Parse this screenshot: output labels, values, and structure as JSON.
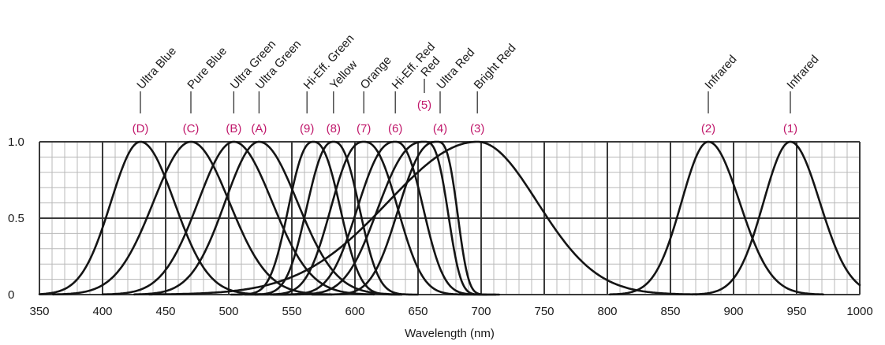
{
  "chart_data": {
    "type": "line",
    "xlabel": "Wavelength (nm)",
    "ylabel": "",
    "xlim": [
      350,
      1000
    ],
    "ylim": [
      0,
      1.0
    ],
    "x_ticks": [
      "350",
      "400",
      "450",
      "500",
      "550",
      "600",
      "650",
      "700",
      "750",
      "800",
      "850",
      "900",
      "950",
      "1000"
    ],
    "y_ticks": [
      "0",
      "0.5",
      "1.0"
    ],
    "grid": true,
    "accent_color": "#c0186b",
    "series": [
      {
        "code": "(D)",
        "name": "Ultra Blue",
        "peak": 430,
        "left_width": 33,
        "right_width": 38,
        "left_power": 2,
        "right_power": 2
      },
      {
        "code": "(C)",
        "name": "Pure Blue",
        "peak": 470,
        "left_width": 42,
        "right_width": 43,
        "left_power": 2,
        "right_power": 2
      },
      {
        "code": "(B)",
        "name": "Ultra Green",
        "peak": 504,
        "left_width": 40,
        "right_width": 43,
        "left_power": 2,
        "right_power": 2
      },
      {
        "code": "(A)",
        "name": "Ultra Green",
        "peak": 524,
        "left_width": 38,
        "right_width": 43,
        "left_power": 2,
        "right_power": 2
      },
      {
        "code": "(9)",
        "name": "Hi-Eff. Green",
        "peak": 567,
        "left_width": 25,
        "right_width": 27,
        "left_power": 2.4,
        "right_power": 2.4
      },
      {
        "code": "(8)",
        "name": "Yellow",
        "peak": 583,
        "left_width": 27,
        "right_width": 26,
        "left_power": 2.4,
        "right_power": 2.4
      },
      {
        "code": "(7)",
        "name": "Orange",
        "peak": 607,
        "left_width": 33,
        "right_width": 34,
        "left_power": 2.4,
        "right_power": 2.4
      },
      {
        "code": "(6)",
        "name": "Hi-Eff. Red",
        "peak": 632,
        "left_width": 38,
        "right_width": 28,
        "left_power": 2.4,
        "right_power": 2.4
      },
      {
        "code": "(5)",
        "name": "Red",
        "peak": 655,
        "left_width": 46,
        "right_width": 22,
        "left_power": 2.5,
        "right_power": 3
      },
      {
        "code": "(4)",
        "name": "Ultra Red",
        "peak": 665,
        "left_width": 38,
        "right_width": 19,
        "left_power": 2.5,
        "right_power": 3
      },
      {
        "code": "(3)",
        "name": "Bright Red",
        "peak": 697,
        "left_width": 100,
        "right_width": 67,
        "left_power": 2,
        "right_power": 2
      },
      {
        "code": "(2)",
        "name": "Infrared",
        "peak": 880,
        "left_width": 30,
        "right_width": 35,
        "left_power": 2,
        "right_power": 2
      },
      {
        "code": "(1)",
        "name": "Infrared",
        "peak": 945,
        "left_width": 30,
        "right_width": 33,
        "left_power": 2,
        "right_power": 2
      }
    ]
  }
}
